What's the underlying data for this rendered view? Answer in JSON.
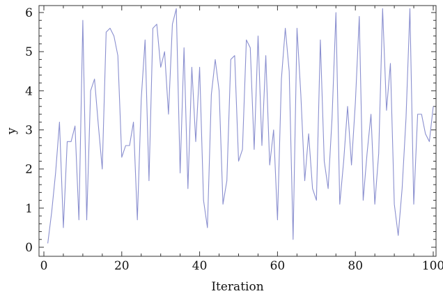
{
  "chart_data": {
    "type": "line",
    "title": "",
    "xlabel": "Iteration",
    "ylabel": "y",
    "xlim": [
      0,
      100
    ],
    "ylim": [
      0,
      6
    ],
    "grid": false,
    "x_ticks": [
      0,
      20,
      40,
      60,
      80,
      100
    ],
    "x_tick_labels": [
      "0",
      "20",
      "40",
      "60",
      "80",
      "100"
    ],
    "y_ticks": [
      0,
      1,
      2,
      3,
      4,
      5,
      6
    ],
    "y_tick_labels": [
      "0",
      "1",
      "2",
      "3",
      "4",
      "5",
      "6"
    ],
    "series": [
      {
        "color": "#8a8fcf",
        "x": [
          1,
          2,
          3,
          4,
          5,
          6,
          7,
          8,
          9,
          10,
          11,
          12,
          13,
          14,
          15,
          16,
          17,
          18,
          19,
          20,
          21,
          22,
          23,
          24,
          25,
          26,
          27,
          28,
          29,
          30,
          31,
          32,
          33,
          34,
          35,
          36,
          37,
          38,
          39,
          40,
          41,
          42,
          43,
          44,
          45,
          46,
          47,
          48,
          49,
          50,
          51,
          52,
          53,
          54,
          55,
          56,
          57,
          58,
          59,
          60,
          61,
          62,
          63,
          64,
          65,
          66,
          67,
          68,
          69,
          70,
          71,
          72,
          73,
          74,
          75,
          76,
          77,
          78,
          79,
          80,
          81,
          82,
          83,
          84,
          85,
          86,
          87,
          88,
          89,
          90,
          91,
          92,
          93,
          94,
          95,
          96,
          97,
          98,
          99,
          100
        ],
        "values": [
          0.1,
          0.9,
          1.9,
          3.2,
          0.5,
          2.7,
          2.7,
          3.1,
          0.7,
          5.8,
          0.7,
          4.0,
          4.3,
          3.1,
          2.0,
          5.5,
          5.6,
          5.4,
          4.9,
          2.3,
          2.6,
          2.6,
          3.2,
          0.7,
          3.8,
          5.3,
          1.7,
          5.6,
          5.7,
          4.6,
          5.0,
          3.4,
          5.7,
          6.1,
          1.9,
          5.1,
          1.5,
          4.6,
          2.7,
          4.6,
          1.2,
          0.5,
          3.9,
          4.8,
          4.0,
          1.1,
          1.7,
          4.8,
          4.9,
          2.2,
          2.5,
          5.3,
          5.1,
          2.5,
          5.4,
          2.6,
          4.9,
          2.1,
          3.0,
          0.7,
          4.3,
          5.6,
          4.5,
          0.2,
          5.6,
          3.9,
          1.7,
          2.9,
          1.5,
          1.2,
          5.3,
          2.2,
          1.5,
          3.3,
          6.0,
          1.1,
          2.2,
          3.6,
          2.1,
          3.7,
          5.9,
          1.2,
          2.4,
          3.4,
          1.1,
          2.4,
          6.1,
          3.5,
          4.7,
          1.1,
          0.3,
          1.5,
          3.3,
          6.1,
          1.1,
          3.4,
          3.4,
          2.9,
          2.7,
          3.6
        ]
      }
    ]
  }
}
